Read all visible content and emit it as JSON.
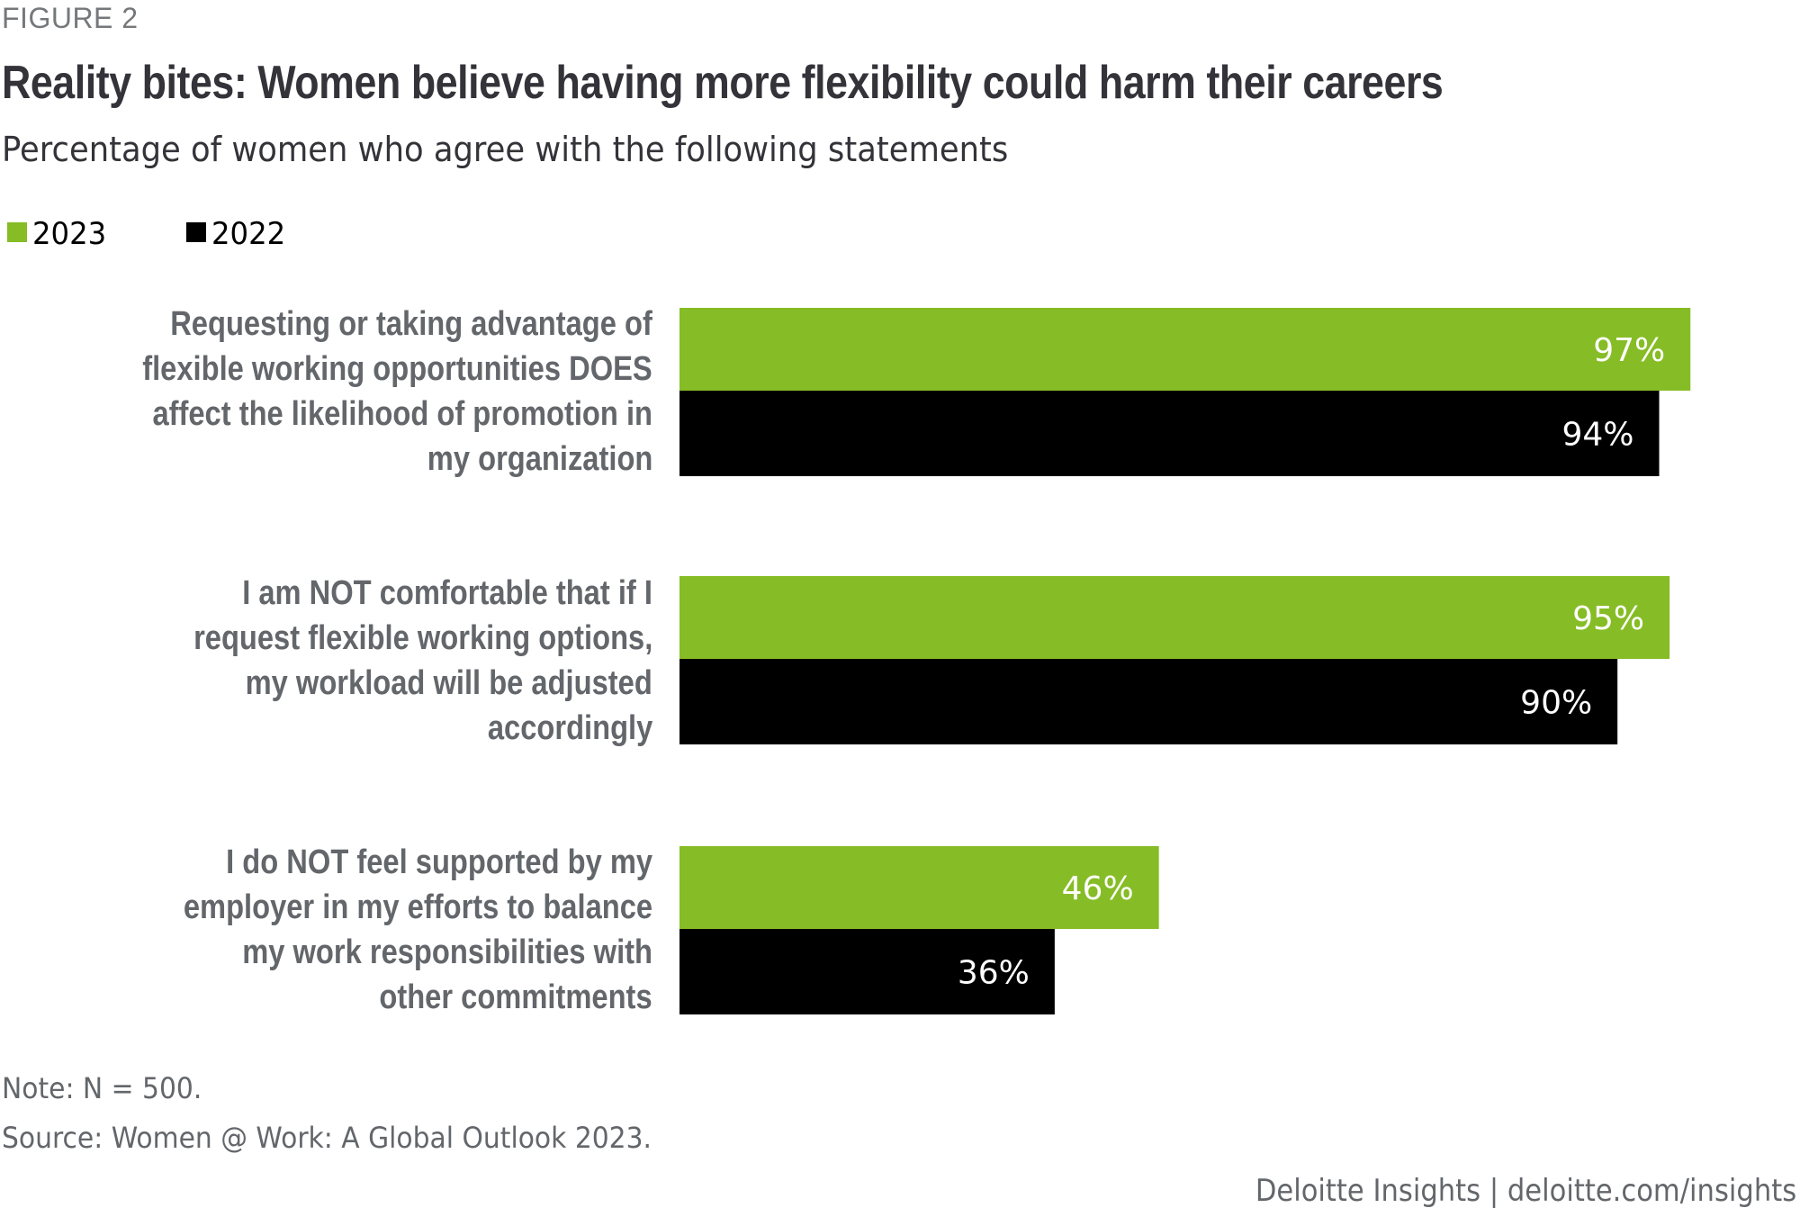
{
  "figure_label": "FIGURE 2",
  "colors": {
    "series_2023": "#86bc25",
    "series_2022": "#000000",
    "label_text": "#63666a",
    "title_text": "#333339"
  },
  "notes": {
    "note": "Note: N = 500.",
    "source": "Source: Women @ Work: A Global Outlook 2023."
  },
  "footer": {
    "brand": "Deloitte Insights | deloitte.com/insights"
  },
  "chart_data": {
    "type": "bar",
    "orientation": "horizontal",
    "title": "Reality bites: Women believe having more flexibility could harm their careers",
    "subtitle": "Percentage of women who agree with the following statements",
    "xlabel": "",
    "ylabel": "",
    "xlim": [
      0,
      100
    ],
    "grid": false,
    "legend_position": "top-left",
    "categories": [
      [
        "Requesting or taking advantage of",
        "flexible working opportunities DOES",
        "affect the likelihood of promotion in",
        "my organization"
      ],
      [
        "I am NOT comfortable that if I",
        "request flexible working options,",
        "my workload will be adjusted",
        "accordingly"
      ],
      [
        "I do NOT feel supported by my",
        "employer in my efforts to balance",
        "my work responsibilities with",
        "other commitments"
      ]
    ],
    "series": [
      {
        "name": "2023",
        "color": "#86bc25",
        "values": [
          97,
          95,
          46
        ],
        "labels": [
          "97%",
          "95%",
          "46%"
        ]
      },
      {
        "name": "2022",
        "color": "#000000",
        "values": [
          94,
          90,
          36
        ],
        "labels": [
          "94%",
          "90%",
          "36%"
        ]
      }
    ]
  }
}
